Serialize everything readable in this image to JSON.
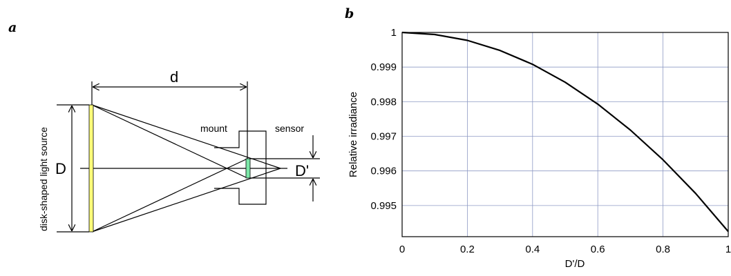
{
  "panel_a": {
    "label": "a",
    "labels": {
      "d": "d",
      "D": "D",
      "D_prime": "D'",
      "source": "disk-shaped light source",
      "mount": "mount",
      "sensor": "sensor"
    },
    "colors": {
      "source_fill": "#ffff7a",
      "sensor_fill": "#7ce8a8"
    }
  },
  "panel_b": {
    "label": "b"
  },
  "chart_data": {
    "type": "line",
    "xlabel": "D'/D",
    "ylabel": "Relative irradiance",
    "xlim": [
      0,
      1
    ],
    "ylim": [
      0.9941,
      1.0
    ],
    "xticks": [
      0,
      0.2,
      0.4,
      0.6,
      0.8,
      1
    ],
    "xtick_labels": [
      "0",
      "0.2",
      "0.4",
      "0.6",
      "0.8",
      "1"
    ],
    "yticks": [
      0.995,
      0.996,
      0.997,
      0.998,
      0.999,
      1
    ],
    "ytick_labels": [
      "0.995",
      "0.996",
      "0.997",
      "0.998",
      "0.999",
      "1"
    ],
    "grid": true,
    "series": [
      {
        "x": [
          0,
          0.1,
          0.2,
          0.3,
          0.4,
          0.5,
          0.6,
          0.7,
          0.8,
          0.9,
          1.0
        ],
        "y": [
          1.0,
          0.99994,
          0.99977,
          0.99948,
          0.99908,
          0.99856,
          0.99793,
          0.99718,
          0.99632,
          0.99535,
          0.99425
        ]
      }
    ]
  }
}
